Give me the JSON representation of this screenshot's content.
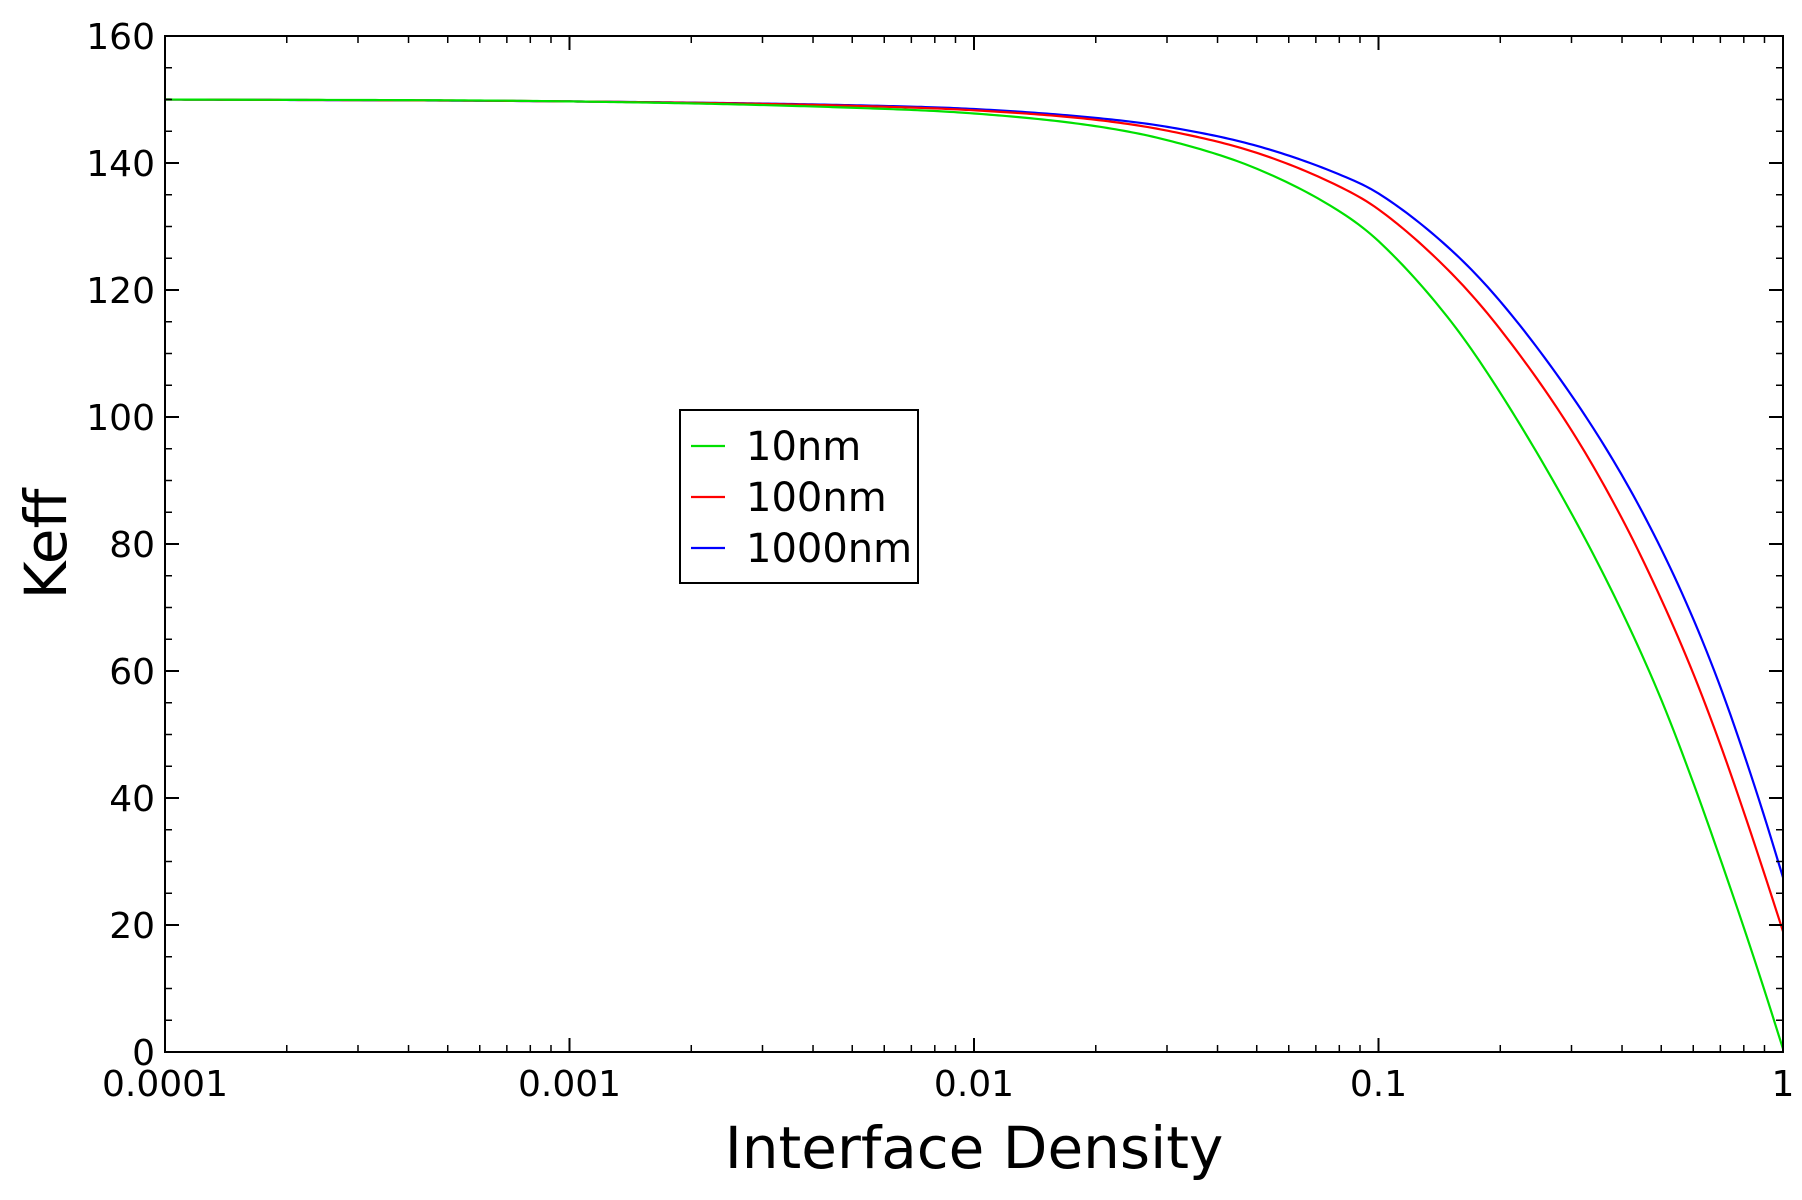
{
  "chart_data": {
    "type": "line",
    "title": "",
    "xlabel": "Interface Density",
    "ylabel": "Keff",
    "x_scale": "log",
    "xlim": [
      0.0001,
      1
    ],
    "ylim": [
      0,
      160
    ],
    "x_ticks": [
      0.0001,
      0.001,
      0.01,
      0.1,
      1
    ],
    "x_tick_labels": [
      "0.0001",
      "0.001",
      "0.01",
      "0.1",
      "1"
    ],
    "y_ticks": [
      0,
      20,
      40,
      60,
      80,
      100,
      120,
      140,
      160
    ],
    "y_tick_labels": [
      "0",
      "20",
      "40",
      "60",
      "80",
      "100",
      "120",
      "140",
      "160"
    ],
    "grid": false,
    "legend_position": "center-left",
    "x": [
      0.0001,
      0.001,
      0.005,
      0.01,
      0.02,
      0.03,
      0.05,
      0.08,
      0.1,
      0.15,
      0.2,
      0.3,
      0.4,
      0.5,
      0.6,
      0.7,
      0.8,
      0.9,
      1.0
    ],
    "series": [
      {
        "name": "10nm",
        "color": "#00e000",
        "values": [
          150.0,
          149.7,
          148.7,
          147.8,
          145.8,
          143.6,
          139.1,
          132.4,
          127.7,
          115.3,
          103.8,
          84.8,
          69.3,
          55.5,
          42.4,
          30.4,
          19.6,
          9.7,
          0.5
        ]
      },
      {
        "name": "100nm",
        "color": "#ff0000",
        "values": [
          150.0,
          149.7,
          149.0,
          148.3,
          146.8,
          145.1,
          141.6,
          136.3,
          132.7,
          122.9,
          113.8,
          97.9,
          84.0,
          71.3,
          59.6,
          48.4,
          37.8,
          28.0,
          19.0
        ]
      },
      {
        "name": "1000nm",
        "color": "#0000ff",
        "values": [
          150.0,
          149.7,
          149.1,
          148.5,
          147.1,
          145.7,
          142.7,
          138.2,
          135.2,
          126.5,
          118.2,
          103.4,
          90.8,
          79.2,
          68.2,
          57.5,
          47.0,
          37.0,
          27.5
        ]
      }
    ]
  }
}
